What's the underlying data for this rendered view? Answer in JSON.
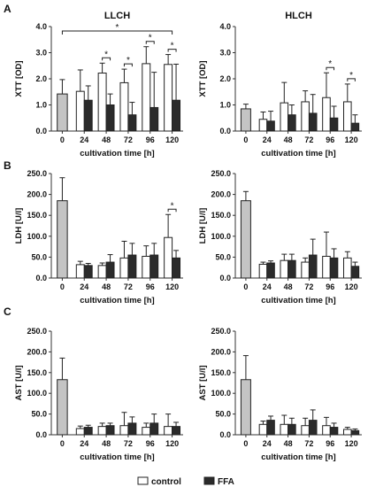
{
  "panels": [
    {
      "panel_letter": "A",
      "charts": [
        {
          "type": "bar",
          "title": "LLCH",
          "ylabel": "XTT [OD]",
          "xlabel": "cultivation time [h]",
          "ylim": [
            0,
            4
          ],
          "yticks": [
            "0.0",
            "1.0",
            "2.0",
            "3.0",
            "4.0"
          ],
          "categories": [
            "0",
            "24",
            "48",
            "72",
            "96",
            "120"
          ],
          "baseline": {
            "value": 1.42,
            "error": 0.55
          },
          "series": [
            {
              "name": "control",
              "values": [
                null,
                1.52,
                2.22,
                1.85,
                2.58,
                2.55
              ],
              "errors": [
                null,
                0.82,
                0.38,
                0.52,
                0.65,
                0.38
              ]
            },
            {
              "name": "FFA",
              "values": [
                null,
                1.18,
                1.0,
                0.62,
                0.9,
                1.18
              ],
              "errors": [
                null,
                0.55,
                0.42,
                0.48,
                1.35,
                1.38
              ]
            }
          ],
          "significance": [
            {
              "category": "48",
              "label": "*"
            },
            {
              "category": "72",
              "label": "*"
            },
            {
              "category": "96",
              "label": "*"
            },
            {
              "category": "120",
              "label": "*"
            }
          ],
          "span_significance": {
            "from": "0",
            "to": "120",
            "label": "*"
          }
        },
        {
          "type": "bar",
          "title": "HLCH",
          "ylabel": "XTT [OD]",
          "xlabel": "cultivation time [h]",
          "ylim": [
            0,
            4
          ],
          "yticks": [
            "0.0",
            "1.0",
            "2.0",
            "3.0",
            "4.0"
          ],
          "categories": [
            "0",
            "24",
            "48",
            "72",
            "96",
            "120"
          ],
          "baseline": {
            "value": 0.85,
            "error": 0.18
          },
          "series": [
            {
              "name": "control",
              "values": [
                null,
                0.45,
                1.08,
                1.12,
                1.28,
                1.12
              ],
              "errors": [
                null,
                0.28,
                0.78,
                0.42,
                0.95,
                0.68
              ]
            },
            {
              "name": "FFA",
              "values": [
                null,
                0.38,
                0.62,
                0.68,
                0.5,
                0.3
              ],
              "errors": [
                null,
                0.38,
                0.38,
                0.72,
                0.45,
                0.32
              ]
            }
          ],
          "significance": [
            {
              "category": "96",
              "label": "*"
            },
            {
              "category": "120",
              "label": "*"
            }
          ]
        }
      ]
    },
    {
      "panel_letter": "B",
      "charts": [
        {
          "type": "bar",
          "title": "",
          "ylabel": "LDH [U/l]",
          "xlabel": "cultivation time [h]",
          "ylim": [
            0,
            250
          ],
          "yticks": [
            "0.0",
            "50.0",
            "100.0",
            "150.0",
            "200.0",
            "250.0"
          ],
          "categories": [
            "0",
            "24",
            "48",
            "72",
            "96",
            "120"
          ],
          "baseline": {
            "value": 185,
            "error": 55
          },
          "series": [
            {
              "name": "control",
              "values": [
                null,
                32,
                30,
                48,
                52,
                97
              ],
              "errors": [
                null,
                8,
                6,
                40,
                25,
                55
              ]
            },
            {
              "name": "FFA",
              "values": [
                null,
                30,
                38,
                55,
                55,
                48
              ],
              "errors": [
                null,
                5,
                18,
                28,
                28,
                18
              ]
            }
          ],
          "significance": [
            {
              "category": "120",
              "label": "*"
            }
          ]
        },
        {
          "type": "bar",
          "title": "",
          "ylabel": "LDH [U/l]",
          "xlabel": "cultivation time [h]",
          "ylim": [
            0,
            250
          ],
          "yticks": [
            "0.0",
            "50.0",
            "100.0",
            "150.0",
            "200.0",
            "250.0"
          ],
          "categories": [
            "0",
            "24",
            "48",
            "72",
            "96",
            "120"
          ],
          "baseline": {
            "value": 185,
            "error": 22
          },
          "series": [
            {
              "name": "control",
              "values": [
                null,
                33,
                42,
                38,
                52,
                48
              ],
              "errors": [
                null,
                5,
                15,
                10,
                58,
                15
              ]
            },
            {
              "name": "FFA",
              "values": [
                null,
                36,
                42,
                55,
                48,
                28
              ],
              "errors": [
                null,
                5,
                15,
                38,
                22,
                10
              ]
            }
          ],
          "significance": []
        }
      ]
    },
    {
      "panel_letter": "C",
      "charts": [
        {
          "type": "bar",
          "title": "",
          "ylabel": "AST [U/l]",
          "xlabel": "cultivation time [h]",
          "ylim": [
            0,
            250
          ],
          "yticks": [
            "0.0",
            "50.0",
            "100.0",
            "150.0",
            "200.0",
            "250.0"
          ],
          "categories": [
            "0",
            "24",
            "48",
            "72",
            "96",
            "120"
          ],
          "baseline": {
            "value": 133,
            "error": 52
          },
          "series": [
            {
              "name": "control",
              "values": [
                null,
                15,
                20,
                22,
                18,
                20
              ],
              "errors": [
                null,
                6,
                8,
                32,
                10,
                30
              ]
            },
            {
              "name": "FFA",
              "values": [
                null,
                18,
                22,
                28,
                28,
                20
              ],
              "errors": [
                null,
                5,
                6,
                15,
                22,
                10
              ]
            }
          ],
          "significance": []
        },
        {
          "type": "bar",
          "title": "",
          "ylabel": "AST [U/l]",
          "xlabel": "cultivation time [h]",
          "ylim": [
            0,
            250
          ],
          "yticks": [
            "0.0",
            "50.0",
            "100.0",
            "150.0",
            "200.0",
            "250.0"
          ],
          "categories": [
            "0",
            "24",
            "48",
            "72",
            "96",
            "120"
          ],
          "baseline": {
            "value": 133,
            "error": 58
          },
          "series": [
            {
              "name": "control",
              "values": [
                null,
                25,
                25,
                22,
                22,
                13
              ],
              "errors": [
                null,
                8,
                22,
                18,
                20,
                5
              ]
            },
            {
              "name": "FFA",
              "values": [
                null,
                35,
                25,
                35,
                18,
                10
              ],
              "errors": [
                null,
                10,
                15,
                25,
                10,
                4
              ]
            }
          ],
          "significance": []
        }
      ]
    }
  ],
  "legend": {
    "placement": "bottom",
    "items": [
      {
        "label": "control",
        "color": "#ffffff"
      },
      {
        "label": "FFA",
        "color": "#2b2b2b"
      }
    ]
  },
  "colors": {
    "baseline": "#c4c4c4",
    "control": "#ffffff",
    "ffa": "#2b2b2b",
    "stroke": "#222222"
  }
}
